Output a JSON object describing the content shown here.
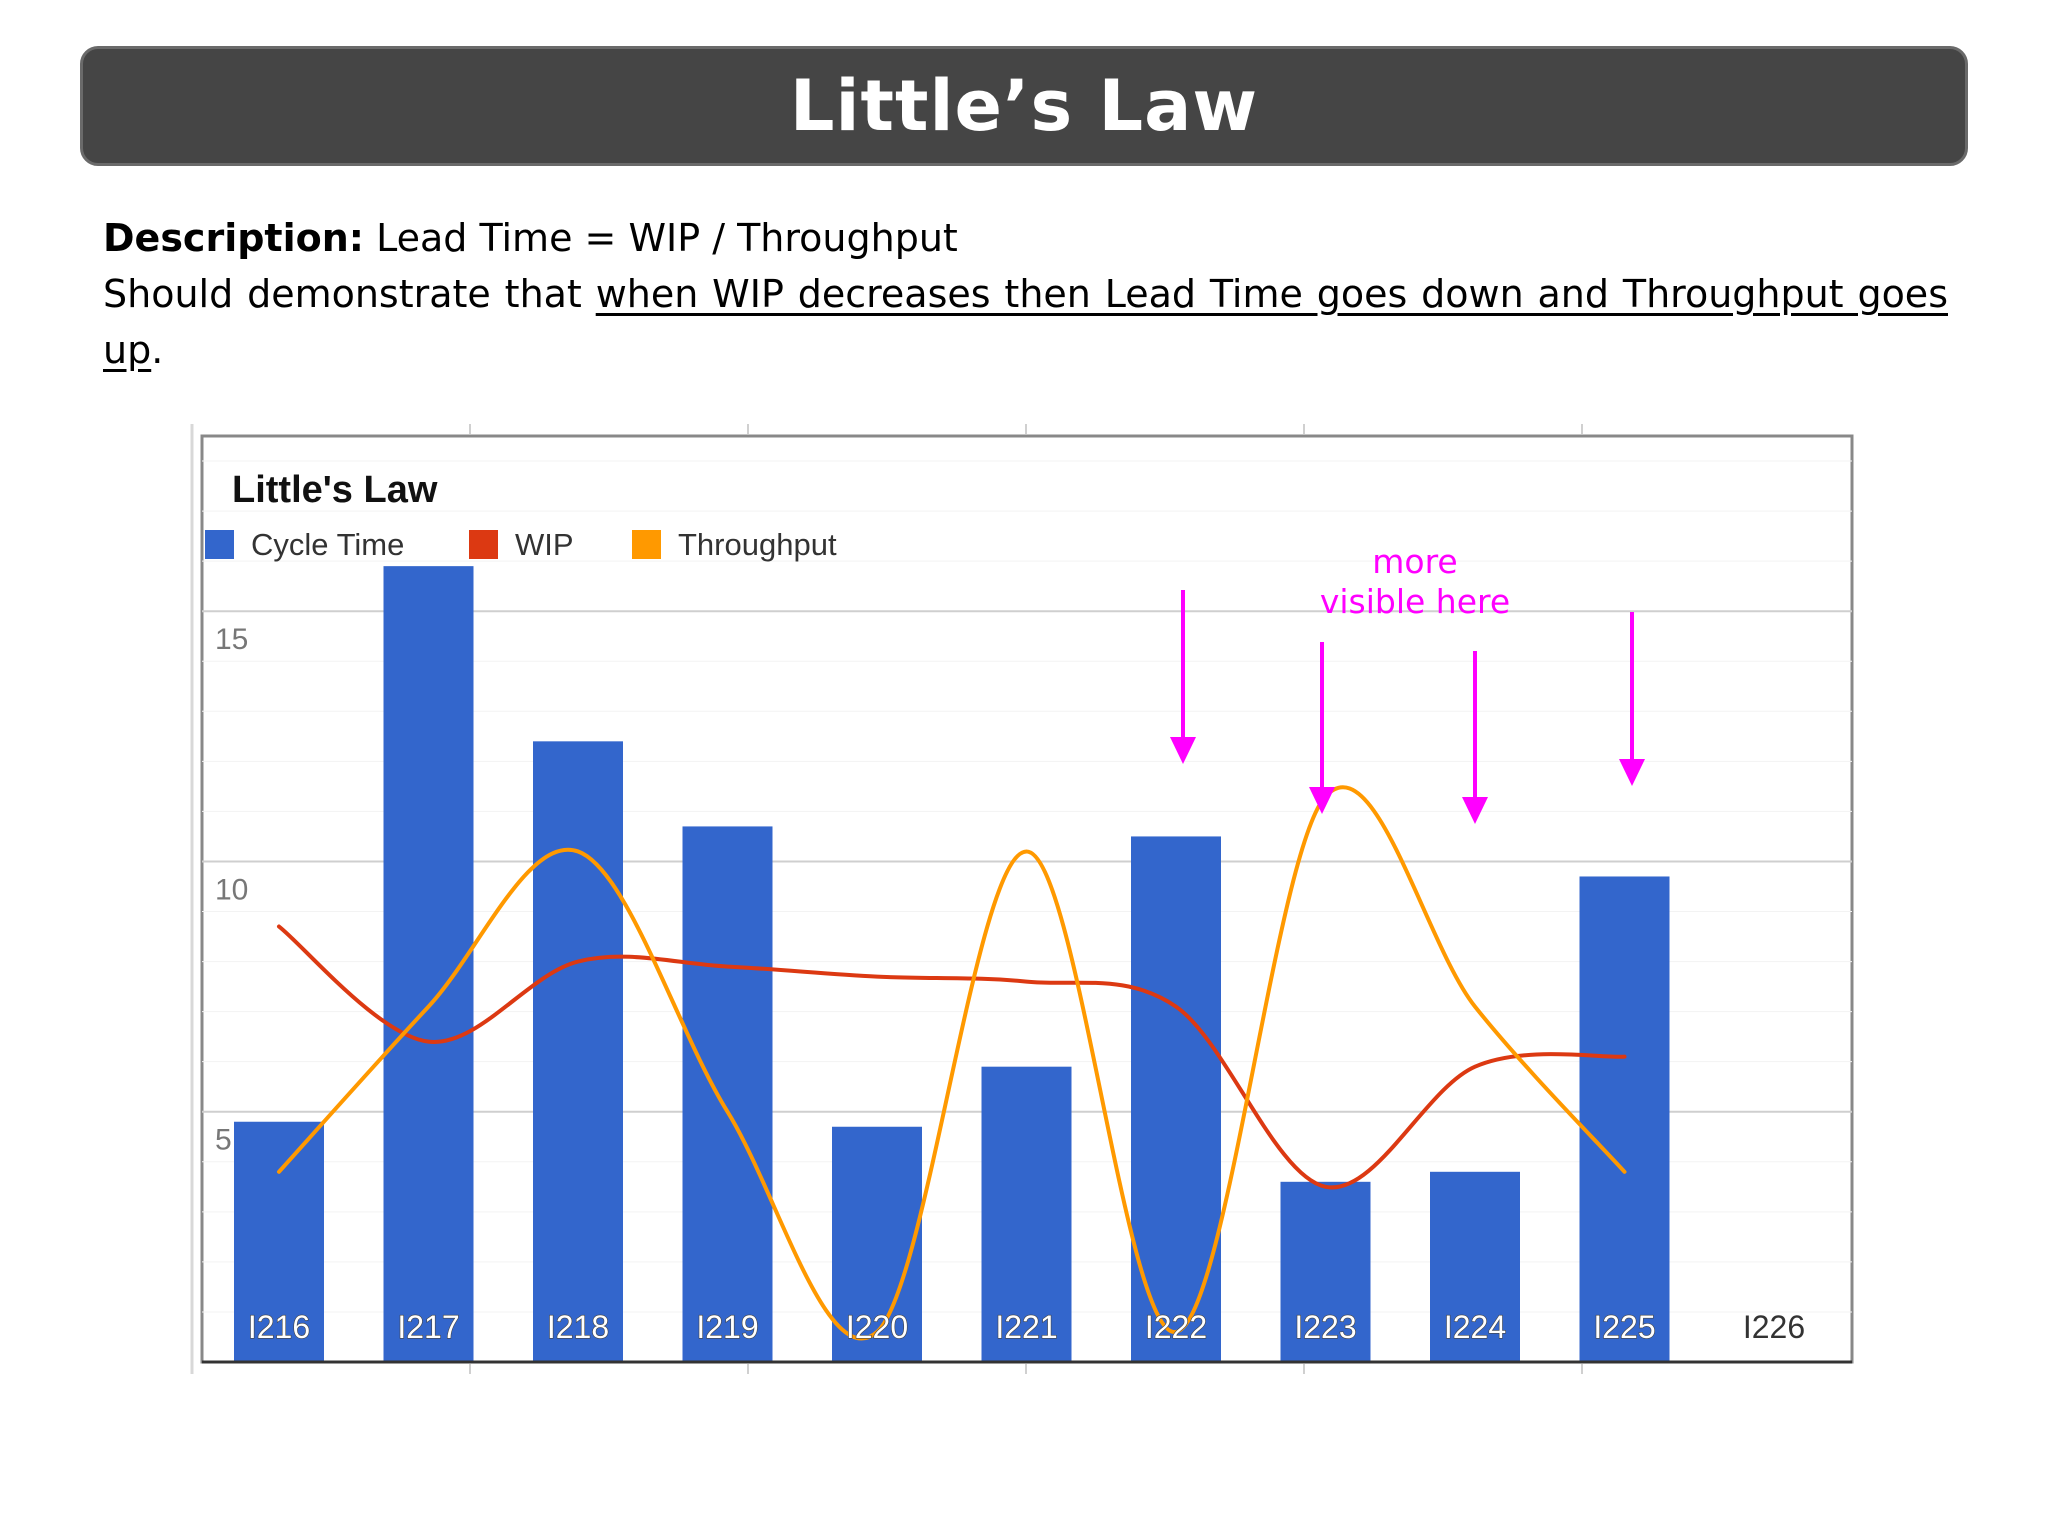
{
  "slide": {
    "title": "Little’s Law",
    "description": {
      "label": "Description:",
      "formula": "Lead Time = WIP / Throughput",
      "text_prefix": "Should demonstrate that",
      "underlined": "when WIP decreases then Lead Time goes down and Throughput goes up",
      "suffix": "."
    }
  },
  "annotation": {
    "text_line1": "more",
    "text_line2": "visible here",
    "color": "#ff00ff"
  },
  "chart_data": {
    "type": "bar",
    "title": "Little's Law",
    "categories": [
      "I216",
      "I217",
      "I218",
      "I219",
      "I220",
      "I221",
      "I222",
      "I223",
      "I224",
      "I225",
      "I226"
    ],
    "series": [
      {
        "name": "Cycle Time",
        "type": "bar",
        "color": "#3366cc",
        "values": [
          4.8,
          15.9,
          12.4,
          10.7,
          4.7,
          5.9,
          10.5,
          3.6,
          3.8,
          9.7,
          null
        ]
      },
      {
        "name": "WIP",
        "type": "line",
        "color": "#dc3912",
        "values": [
          8.7,
          6.4,
          8.0,
          7.9,
          7.7,
          7.6,
          7.1,
          3.5,
          5.9,
          6.1,
          null
        ]
      },
      {
        "name": "Throughput",
        "type": "line",
        "color": "#ff9900",
        "values": [
          3.8,
          7.1,
          10.2,
          5.0,
          0.6,
          10.2,
          0.6,
          11.3,
          7.1,
          3.8,
          null
        ]
      }
    ],
    "yticks": [
      5,
      10,
      15
    ],
    "ylim": [
      0,
      18.5
    ],
    "legend_position": "top-left",
    "grid": true
  }
}
